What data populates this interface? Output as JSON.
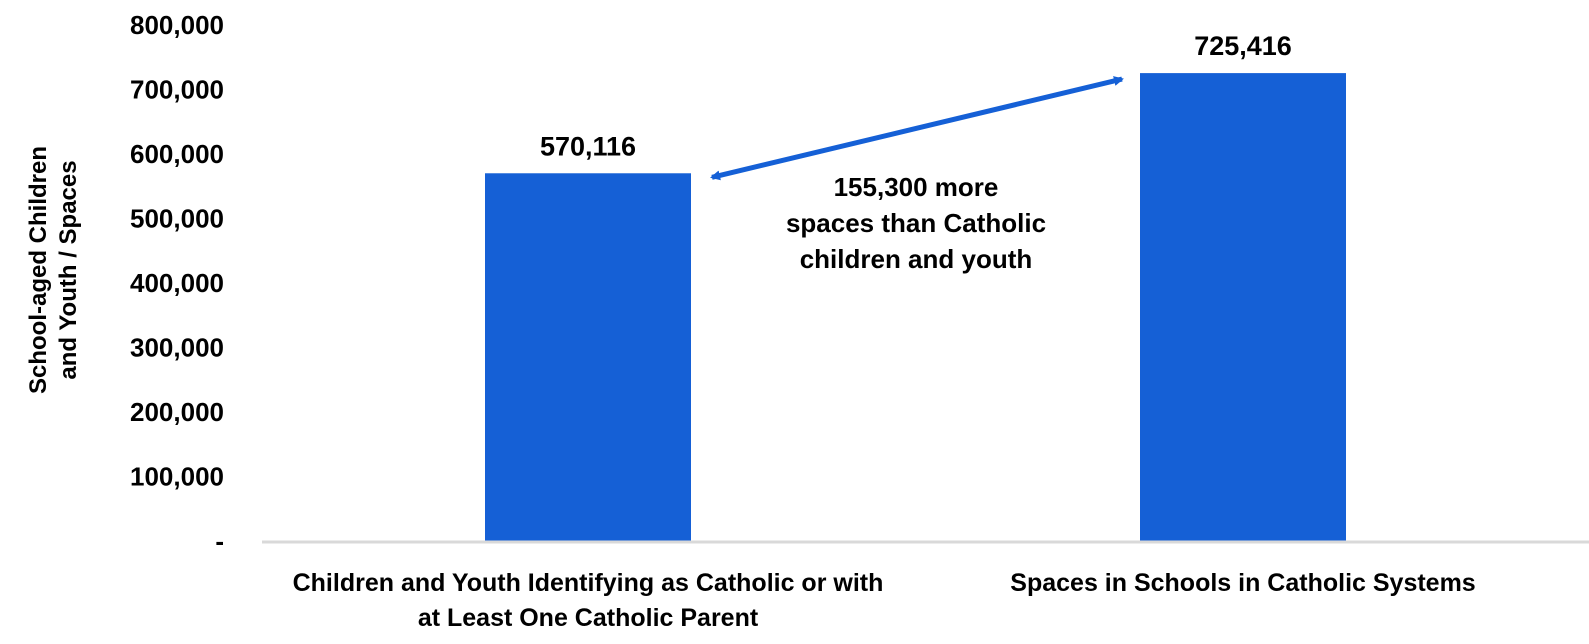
{
  "chart_data": {
    "type": "bar",
    "title": "",
    "ylabel_lines": [
      "School-aged Children",
      "and Youth / Spaces"
    ],
    "ylim": [
      0,
      800000
    ],
    "yticks": [
      0,
      100000,
      200000,
      300000,
      400000,
      500000,
      600000,
      700000,
      800000
    ],
    "ytick_labels": [
      "-",
      "100,000",
      "200,000",
      "300,000",
      "400,000",
      "500,000",
      "600,000",
      "700,000",
      "800,000"
    ],
    "categories": [
      [
        "Children and Youth Identifying as Catholic or with",
        "at Least One Catholic Parent"
      ],
      [
        "Spaces in Schools in Catholic Systems"
      ]
    ],
    "values": [
      570116,
      725416
    ],
    "value_labels": [
      "570,116",
      "725,416"
    ],
    "bar_color": "#1560D6",
    "arrow_color": "#1560D6",
    "axis_color": "#D9D9D9",
    "grid": false,
    "annotation": {
      "lines": [
        "155,300 more",
        "spaces than Catholic",
        "children and youth"
      ]
    }
  }
}
